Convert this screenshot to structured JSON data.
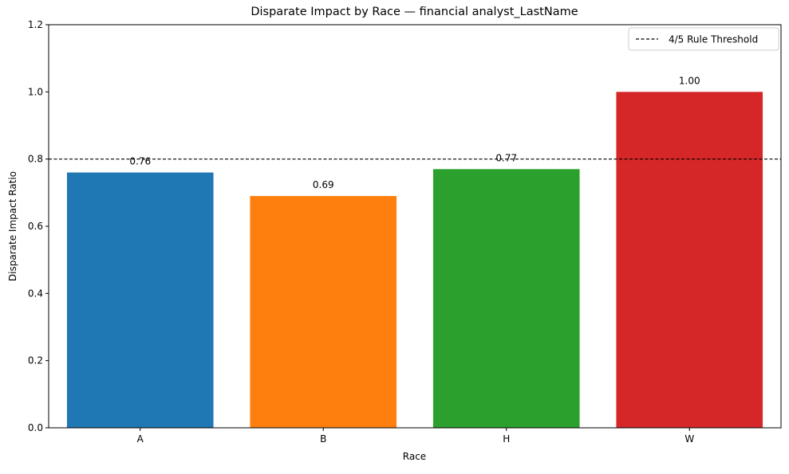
{
  "chart_data": {
    "type": "bar",
    "title": "Disparate Impact by Race — financial analyst_LastName",
    "xlabel": "Race",
    "ylabel": "Disparate Impact Ratio",
    "categories": [
      "A",
      "B",
      "H",
      "W"
    ],
    "values": [
      0.76,
      0.69,
      0.77,
      1.0
    ],
    "value_labels": [
      "0.76",
      "0.69",
      "0.77",
      "1.00"
    ],
    "colors": [
      "#1f77b4",
      "#ff7f0e",
      "#2ca02c",
      "#d62728"
    ],
    "ylim": [
      0,
      1.2
    ],
    "yticks": [
      0.0,
      0.2,
      0.4,
      0.6,
      0.8,
      1.0,
      1.2
    ],
    "ytick_labels": [
      "0.0",
      "0.2",
      "0.4",
      "0.6",
      "0.8",
      "1.0",
      "1.2"
    ],
    "threshold": {
      "value": 0.8,
      "label": "4/5 Rule Threshold",
      "color": "#000000",
      "style": "dashed"
    },
    "legend_position": "top-right",
    "grid": false
  }
}
